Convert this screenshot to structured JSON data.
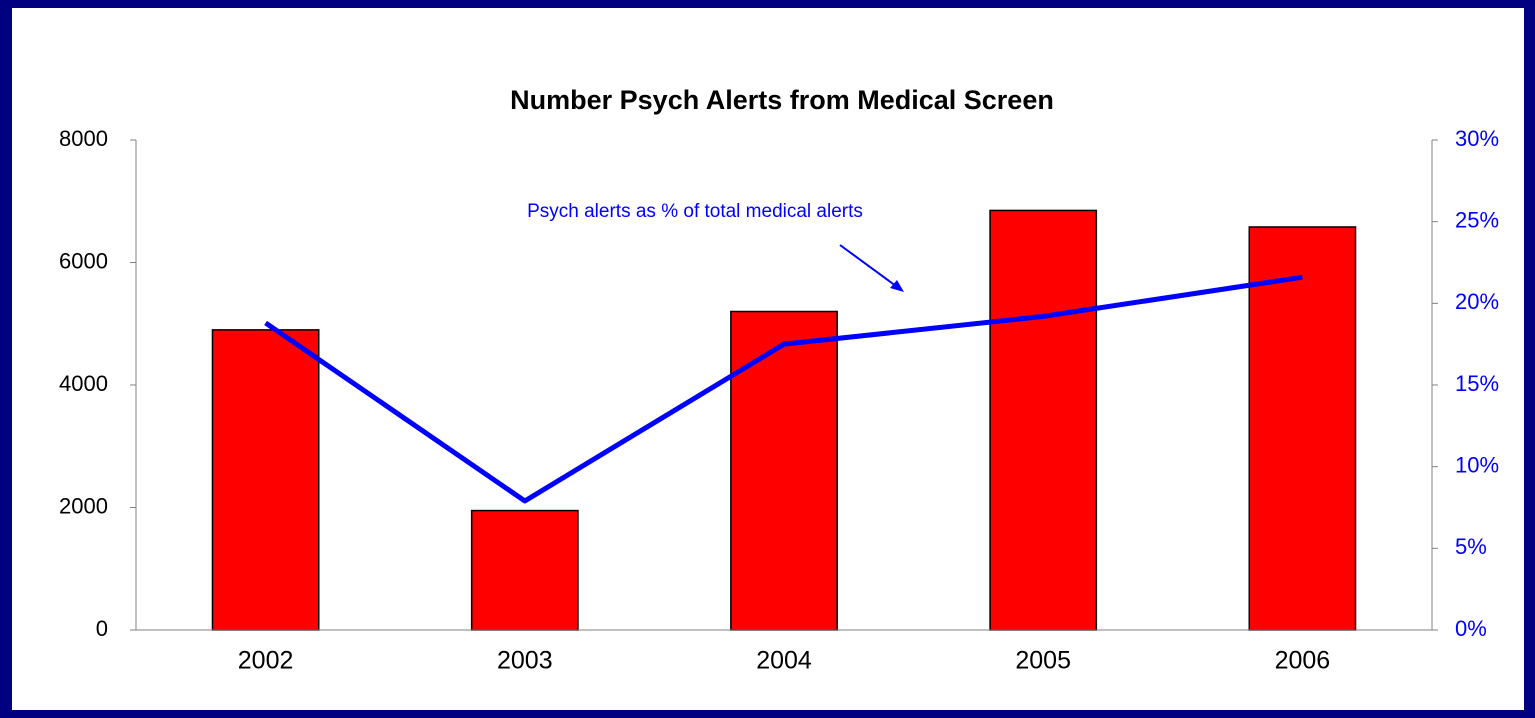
{
  "chart_data": {
    "type": "bar",
    "title": "Number Psych Alerts from Medical Screen",
    "categories": [
      "2002",
      "2003",
      "2004",
      "2005",
      "2006"
    ],
    "series": [
      {
        "type": "bar",
        "color": "#ff0000",
        "values": [
          4900,
          1950,
          5200,
          6850,
          6580
        ]
      },
      {
        "type": "line",
        "axis": "y2",
        "color": "#0000ff",
        "values": [
          18.8,
          7.9,
          17.5,
          19.2,
          21.6
        ]
      }
    ],
    "ylim": [
      0,
      8000
    ],
    "yticks": [
      0,
      2000,
      4000,
      6000,
      8000
    ],
    "y2lim": [
      0,
      30
    ],
    "y2ticks": [
      {
        "value": 0,
        "label": "0%"
      },
      {
        "value": 5,
        "label": "5%"
      },
      {
        "value": 10,
        "label": "10%"
      },
      {
        "value": 15,
        "label": "15%"
      },
      {
        "value": 20,
        "label": "20%"
      },
      {
        "value": 25,
        "label": "25%"
      },
      {
        "value": 30,
        "label": "30%"
      }
    ],
    "annotation": "Psych alerts as % of total medical alerts",
    "grid": false
  }
}
